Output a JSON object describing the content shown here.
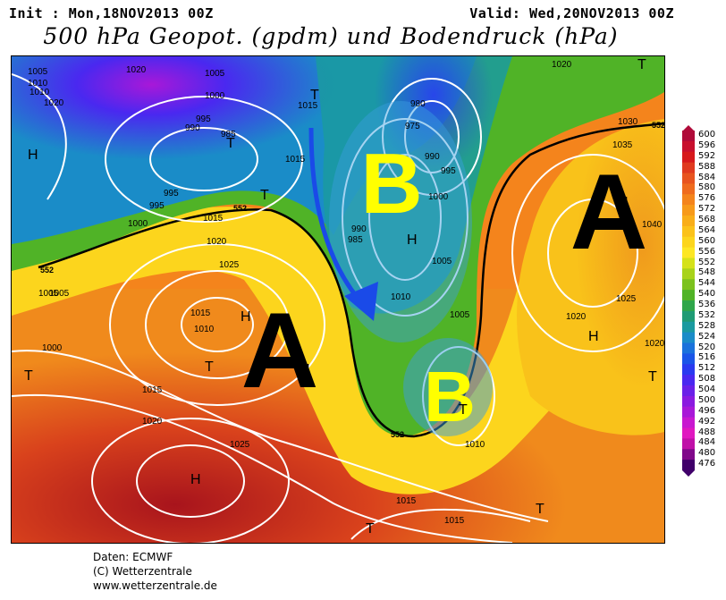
{
  "header": {
    "init": "Init : Mon,18NOV2013 00Z",
    "valid": "Valid: Wed,20NOV2013 00Z",
    "title": "500 hPa Geopot. (gpdm) und Bodendruck (hPa)"
  },
  "map": {
    "pressure_systems": [
      {
        "label": "A",
        "color": "#000000"
      },
      {
        "label": "A",
        "color": "#000000"
      },
      {
        "label": "B",
        "color": "#ffff00"
      },
      {
        "label": "B",
        "color": "#ffff00"
      }
    ],
    "marks": {
      "high": "H",
      "low": "T"
    },
    "isobar_labels": [
      "1005",
      "1020",
      "1005",
      "1010",
      "1020",
      "1015",
      "1000",
      "995",
      "990",
      "985",
      "980",
      "975",
      "990",
      "995",
      "1000",
      "1005",
      "1010",
      "1015",
      "1020",
      "1025",
      "1030",
      "1035",
      "1040",
      "1025",
      "1020",
      "1020",
      "1015",
      "1010",
      "1005",
      "1000",
      "1015",
      "1020",
      "1025",
      "1010",
      "1015",
      "1015",
      "1005",
      "985",
      "990",
      "995",
      "1005",
      "1010",
      "995",
      "1000",
      "1015",
      "1020"
    ],
    "geopotential_labels": [
      "552",
      "552",
      "552",
      "552"
    ]
  },
  "legend": {
    "ticks": [
      "600",
      "596",
      "592",
      "588",
      "584",
      "580",
      "576",
      "572",
      "568",
      "564",
      "560",
      "556",
      "552",
      "548",
      "544",
      "540",
      "536",
      "532",
      "528",
      "524",
      "520",
      "516",
      "512",
      "508",
      "504",
      "500",
      "496",
      "492",
      "488",
      "484",
      "480",
      "476"
    ],
    "colors": [
      "#b00b3a",
      "#c8102e",
      "#d7191c",
      "#e03a1f",
      "#e8541f",
      "#ef6b1e",
      "#f4841c",
      "#f79a1a",
      "#f9ae19",
      "#fbc21a",
      "#fcd51d",
      "#fde725",
      "#d5e21a",
      "#a8d31b",
      "#7cc21e",
      "#50b327",
      "#2fa64a",
      "#1f9b74",
      "#1a9aa0",
      "#1a8cc8",
      "#1a72dc",
      "#1a55e8",
      "#2a3af0",
      "#4a28f0",
      "#6a20e8",
      "#8a1ae0",
      "#a818d8",
      "#c818d0",
      "#e018c0",
      "#c010a8",
      "#80088a",
      "#40006a"
    ]
  },
  "footer": {
    "line1": "Daten: ECMWF",
    "line2": "(C) Wetterzentrale",
    "line3": "www.wetterzentrale.de"
  }
}
